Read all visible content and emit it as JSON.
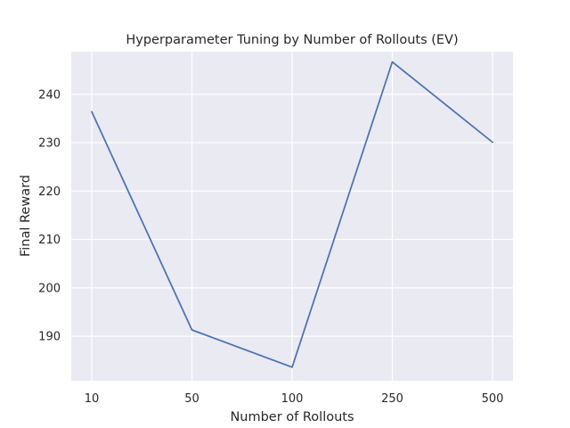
{
  "chart_data": {
    "type": "line",
    "title": "Hyperparameter Tuning by Number of Rollouts (EV)",
    "xlabel": "Number of Rollouts",
    "ylabel": "Final Reward",
    "categories": [
      "10",
      "50",
      "100",
      "250",
      "500"
    ],
    "series": [
      {
        "values": [
          236.4,
          191.3,
          183.6,
          246.7,
          230.1
        ]
      }
    ],
    "ylim": [
      180.8,
      248.8
    ],
    "yticks": [
      190,
      200,
      210,
      220,
      230,
      240
    ],
    "grid": true,
    "colors": {
      "background": "#eaeaf2",
      "grid": "#ffffff",
      "line": "#4c72b0"
    }
  }
}
